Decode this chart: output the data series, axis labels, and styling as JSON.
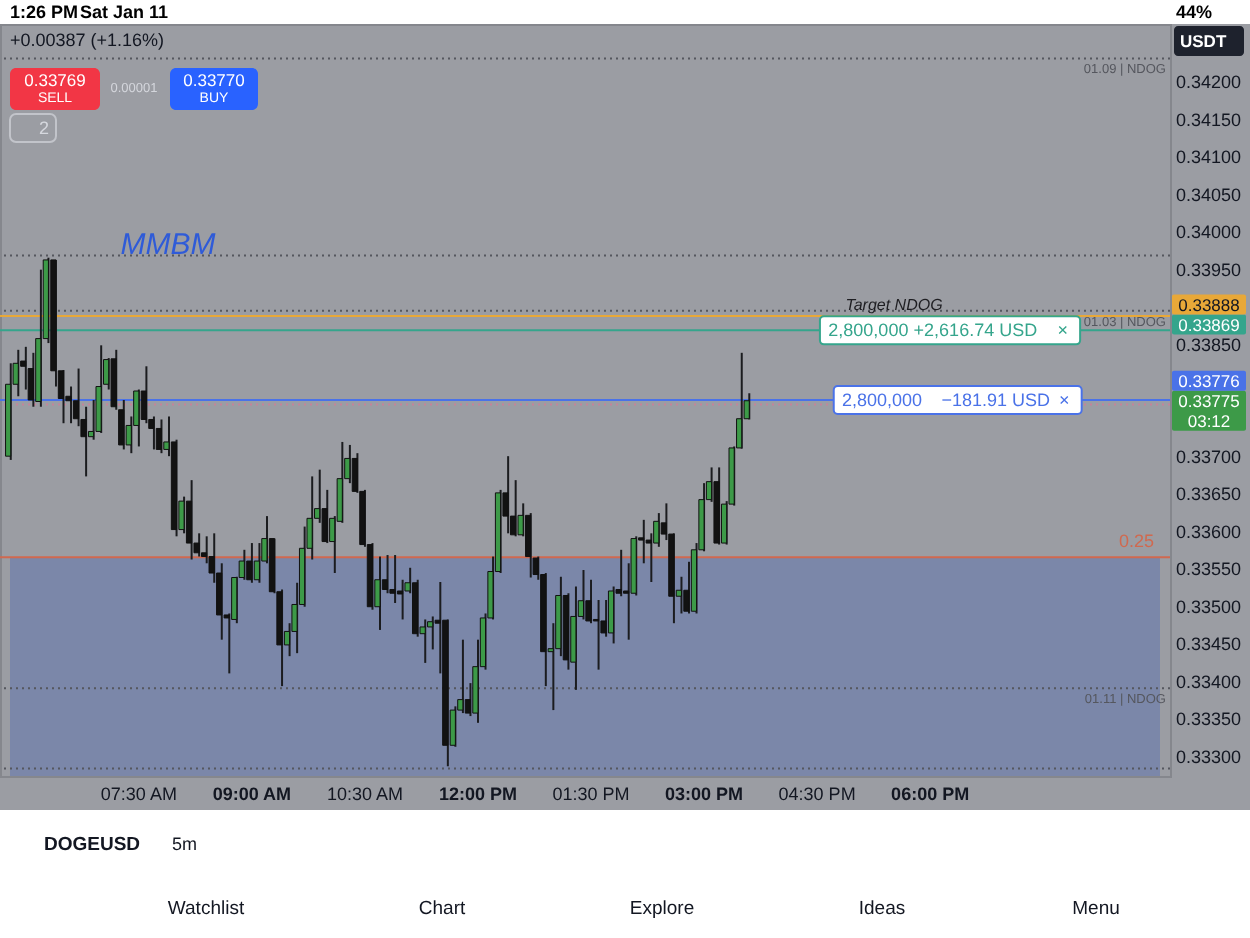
{
  "chart_data": {
    "type": "candlestick",
    "title": "DOGEUSD",
    "subtitle": "5m",
    "ylabel": "USDT",
    "x": [
      5.8,
      5.9,
      6,
      6.1,
      6.2,
      6.3,
      6.4,
      6.5,
      6.6,
      6.7,
      6.8,
      6.9,
      7,
      7.1,
      7.2,
      7.3,
      7.4,
      7.5,
      7.6,
      7.7,
      7.8,
      7.9,
      8,
      8.1,
      8.2,
      8.3,
      8.4,
      8.5,
      8.6,
      8.7,
      8.8,
      8.9,
      9,
      9.1,
      9.2,
      9.3,
      9.4,
      9.5,
      9.6,
      9.7,
      9.8,
      9.9,
      10,
      10.1,
      10.2,
      10.3,
      10.4,
      10.5,
      10.6,
      10.7,
      10.8,
      10.9,
      11,
      11.1,
      11.2,
      11.3,
      11.4,
      11.5,
      11.6,
      11.7,
      11.8,
      11.9,
      12,
      12.1,
      12.2,
      12.3,
      12.4,
      12.5,
      12.6,
      12.7,
      12.8,
      12.9,
      13,
      13.1,
      13.2,
      13.3,
      13.4,
      13.5,
      13.6,
      13.7,
      13.8,
      13.9,
      14,
      14.1,
      14.2,
      14.3,
      14.4,
      14.5,
      14.6,
      14.7,
      14.8,
      14.9,
      15,
      15.1,
      15.2,
      15.3,
      15.4,
      15.5,
      15.6
    ],
    "ohlc": [
      [
        0.33701,
        0.33825,
        0.33696,
        0.33797
      ],
      [
        0.33797,
        0.33843,
        0.33781,
        0.33825
      ],
      [
        0.33828,
        0.33847,
        0.3379,
        0.33821
      ],
      [
        0.33818,
        0.33839,
        0.33767,
        0.33776
      ],
      [
        0.33774,
        0.3395,
        0.33767,
        0.33858
      ],
      [
        0.33858,
        0.33966,
        0.33852,
        0.33963
      ],
      [
        0.33963,
        0.33963,
        0.33794,
        0.33815
      ],
      [
        0.33815,
        0.33816,
        0.33745,
        0.33778
      ],
      [
        0.33781,
        0.33794,
        0.33745,
        0.33775
      ],
      [
        0.33775,
        0.33818,
        0.33741,
        0.33751
      ],
      [
        0.3375,
        0.33767,
        0.33674,
        0.33727
      ],
      [
        0.33727,
        0.33776,
        0.33723,
        0.33734
      ],
      [
        0.33734,
        0.33849,
        0.33732,
        0.33794
      ],
      [
        0.33797,
        0.33832,
        0.3379,
        0.3383
      ],
      [
        0.33831,
        0.33843,
        0.33763,
        0.33767
      ],
      [
        0.33763,
        0.33776,
        0.3371,
        0.33716
      ],
      [
        0.33716,
        0.33754,
        0.33705,
        0.33742
      ],
      [
        0.33742,
        0.3379,
        0.33714,
        0.33788
      ],
      [
        0.33788,
        0.33821,
        0.33745,
        0.3375
      ],
      [
        0.3375,
        0.33754,
        0.3371,
        0.33738
      ],
      [
        0.33738,
        0.3375,
        0.33705,
        0.3371
      ],
      [
        0.3371,
        0.33754,
        0.33701,
        0.3372
      ],
      [
        0.3372,
        0.33723,
        0.33594,
        0.33603
      ],
      [
        0.33603,
        0.33647,
        0.33598,
        0.33641
      ],
      [
        0.33641,
        0.33669,
        0.33563,
        0.33585
      ],
      [
        0.33585,
        0.33598,
        0.33567,
        0.33572
      ],
      [
        0.33572,
        0.33594,
        0.33558,
        0.33567
      ],
      [
        0.33567,
        0.33598,
        0.33532,
        0.33545
      ],
      [
        0.33545,
        0.33558,
        0.33456,
        0.33489
      ],
      [
        0.33489,
        0.33491,
        0.33411,
        0.33485
      ],
      [
        0.33483,
        0.3354,
        0.33478,
        0.33539
      ],
      [
        0.33539,
        0.33576,
        0.33536,
        0.33561
      ],
      [
        0.33561,
        0.33585,
        0.33532,
        0.33536
      ],
      [
        0.33536,
        0.33585,
        0.33532,
        0.33561
      ],
      [
        0.33561,
        0.33621,
        0.33558,
        0.33591
      ],
      [
        0.33591,
        0.33591,
        0.33518,
        0.3352
      ],
      [
        0.3352,
        0.33523,
        0.33394,
        0.33449
      ],
      [
        0.33449,
        0.33478,
        0.33434,
        0.33467
      ],
      [
        0.33467,
        0.33532,
        0.33438,
        0.33503
      ],
      [
        0.33503,
        0.33607,
        0.335,
        0.33578
      ],
      [
        0.33578,
        0.33674,
        0.33563,
        0.33618
      ],
      [
        0.33618,
        0.33683,
        0.33612,
        0.33631
      ],
      [
        0.33631,
        0.33656,
        0.33585,
        0.33587
      ],
      [
        0.33587,
        0.33621,
        0.33545,
        0.33618
      ],
      [
        0.33614,
        0.3372,
        0.33612,
        0.33671
      ],
      [
        0.33671,
        0.33716,
        0.33665,
        0.33698
      ],
      [
        0.33698,
        0.33705,
        0.33652,
        0.33654
      ],
      [
        0.33654,
        0.33656,
        0.3358,
        0.33583
      ],
      [
        0.33583,
        0.33585,
        0.33496,
        0.335
      ],
      [
        0.335,
        0.33567,
        0.33469,
        0.33536
      ],
      [
        0.33536,
        0.33569,
        0.33518,
        0.33523
      ],
      [
        0.33523,
        0.33569,
        0.33505,
        0.33518
      ],
      [
        0.33521,
        0.33536,
        0.33483,
        0.33517
      ],
      [
        0.33521,
        0.33552,
        0.33518,
        0.33532
      ],
      [
        0.33532,
        0.33536,
        0.3346,
        0.33464
      ],
      [
        0.33464,
        0.33483,
        0.33425,
        0.33473
      ],
      [
        0.33473,
        0.33487,
        0.33443,
        0.3348
      ],
      [
        0.33482,
        0.33533,
        0.33411,
        0.33478
      ],
      [
        0.33482,
        0.33483,
        0.33287,
        0.33315
      ],
      [
        0.33315,
        0.33367,
        0.33313,
        0.33362
      ],
      [
        0.33362,
        0.33456,
        0.33358,
        0.33376
      ],
      [
        0.33376,
        0.33398,
        0.33354,
        0.33358
      ],
      [
        0.33358,
        0.33456,
        0.33345,
        0.3342
      ],
      [
        0.3342,
        0.33491,
        0.33416,
        0.33485
      ],
      [
        0.33485,
        0.33567,
        0.33483,
        0.33547
      ],
      [
        0.33547,
        0.33656,
        0.33545,
        0.33652
      ],
      [
        0.33652,
        0.33701,
        0.33598,
        0.33621
      ],
      [
        0.33621,
        0.33669,
        0.33594,
        0.33596
      ],
      [
        0.33596,
        0.33638,
        0.33594,
        0.33622
      ],
      [
        0.33622,
        0.33625,
        0.33539,
        0.33567
      ],
      [
        0.33565,
        0.33567,
        0.33536,
        0.33543
      ],
      [
        0.33543,
        0.33545,
        0.33394,
        0.3344
      ],
      [
        0.3344,
        0.33478,
        0.33362,
        0.33444
      ],
      [
        0.33444,
        0.3354,
        0.33434,
        0.33515
      ],
      [
        0.33515,
        0.33518,
        0.33416,
        0.33429
      ],
      [
        0.33426,
        0.33527,
        0.33389,
        0.33487
      ],
      [
        0.33487,
        0.33549,
        0.33483,
        0.33508
      ],
      [
        0.33508,
        0.33536,
        0.33478,
        0.33481
      ],
      [
        0.33483,
        0.33509,
        0.33416,
        0.33481
      ],
      [
        0.33481,
        0.33509,
        0.3346,
        0.33465
      ],
      [
        0.33465,
        0.33527,
        0.33451,
        0.33521
      ],
      [
        0.33523,
        0.33576,
        0.33514,
        0.33518
      ],
      [
        0.33521,
        0.33558,
        0.33456,
        0.33518
      ],
      [
        0.33518,
        0.33594,
        0.33515,
        0.33591
      ],
      [
        0.33592,
        0.33616,
        0.33558,
        0.33589
      ],
      [
        0.33589,
        0.33598,
        0.33533,
        0.33585
      ],
      [
        0.33585,
        0.33625,
        0.3358,
        0.33614
      ],
      [
        0.33612,
        0.33638,
        0.33589,
        0.33597
      ],
      [
        0.33597,
        0.33598,
        0.33478,
        0.33514
      ],
      [
        0.33514,
        0.3354,
        0.33491,
        0.33522
      ],
      [
        0.33522,
        0.3356,
        0.33491,
        0.33494
      ],
      [
        0.33494,
        0.33585,
        0.33491,
        0.33576
      ],
      [
        0.33576,
        0.33665,
        0.33574,
        0.33643
      ],
      [
        0.33643,
        0.33686,
        0.3364,
        0.33667
      ],
      [
        0.33667,
        0.33686,
        0.33583,
        0.33585
      ],
      [
        0.33585,
        0.33641,
        0.33583,
        0.33637
      ],
      [
        0.33637,
        0.33714,
        0.33635,
        0.33712
      ],
      [
        0.33712,
        0.33839,
        0.33711,
        0.33751
      ],
      [
        0.33751,
        0.33785,
        0.3375,
        0.33775
      ]
    ],
    "colors": [
      "#3d9a48",
      "#3d9a48",
      "#121212",
      "#121212",
      "#3d9a48",
      "#3d9a48",
      "#121212",
      "#121212",
      "#121212",
      "#121212",
      "#121212",
      "#3d9a48",
      "#3d9a48",
      "#3d9a48",
      "#121212",
      "#121212",
      "#3d9a48",
      "#3d9a48",
      "#121212",
      "#121212",
      "#121212",
      "#3d9a48",
      "#121212",
      "#3d9a48",
      "#121212",
      "#121212",
      "#121212",
      "#121212",
      "#121212",
      "#121212",
      "#3d9a48",
      "#3d9a48",
      "#121212",
      "#3d9a48",
      "#3d9a48",
      "#121212",
      "#121212",
      "#3d9a48",
      "#3d9a48",
      "#3d9a48",
      "#3d9a48",
      "#3d9a48",
      "#121212",
      "#3d9a48",
      "#3d9a48",
      "#3d9a48",
      "#121212",
      "#121212",
      "#121212",
      "#3d9a48",
      "#121212",
      "#121212",
      "#121212",
      "#3d9a48",
      "#121212",
      "#3d9a48",
      "#3d9a48",
      "#121212",
      "#121212",
      "#3d9a48",
      "#3d9a48",
      "#121212",
      "#3d9a48",
      "#3d9a48",
      "#3d9a48",
      "#3d9a48",
      "#121212",
      "#121212",
      "#3d9a48",
      "#121212",
      "#121212",
      "#121212",
      "#3d9a48",
      "#3d9a48",
      "#121212",
      "#3d9a48",
      "#3d9a48",
      "#121212",
      "#121212",
      "#121212",
      "#3d9a48",
      "#121212",
      "#121212",
      "#3d9a48",
      "#121212",
      "#121212",
      "#3d9a48",
      "#121212",
      "#121212",
      "#3d9a48",
      "#121212",
      "#3d9a48",
      "#3d9a48",
      "#3d9a48",
      "#121212",
      "#3d9a48",
      "#3d9a48",
      "#3d9a48",
      "#3d9a48"
    ],
    "xlim": [
      5.79,
      21.05
    ],
    "ylim": [
      0.33274,
      0.34278
    ],
    "xticks": [
      {
        "value": 7.5,
        "label": "07:30 AM"
      },
      {
        "value": 9,
        "label": "09:00 AM"
      },
      {
        "value": 10.5,
        "label": "10:30 AM"
      },
      {
        "value": 12,
        "label": "12:00 PM"
      },
      {
        "value": 13.5,
        "label": "01:30 PM"
      },
      {
        "value": 15,
        "label": "03:00 PM"
      },
      {
        "value": 16.5,
        "label": "04:30 PM"
      },
      {
        "value": 18,
        "label": "06:00 PM"
      }
    ],
    "yticks": [
      {
        "value": 0.333,
        "label": "0.33300"
      },
      {
        "value": 0.3335,
        "label": "0.33350"
      },
      {
        "value": 0.334,
        "label": "0.33400"
      },
      {
        "value": 0.3345,
        "label": "0.33450"
      },
      {
        "value": 0.335,
        "label": "0.33500"
      },
      {
        "value": 0.3355,
        "label": "0.33550"
      },
      {
        "value": 0.336,
        "label": "0.33600"
      },
      {
        "value": 0.3365,
        "label": "0.33650"
      },
      {
        "value": 0.337,
        "label": "0.33700"
      },
      {
        "value": 0.3385,
        "label": "0.33850"
      },
      {
        "value": 0.3395,
        "label": "0.33950"
      },
      {
        "value": 0.34,
        "label": "0.34000"
      },
      {
        "value": 0.3405,
        "label": "0.34050"
      },
      {
        "value": 0.341,
        "label": "0.34100"
      },
      {
        "value": 0.3415,
        "label": "0.34150"
      },
      {
        "value": 0.342,
        "label": "0.34200"
      }
    ],
    "bands": [
      {
        "axis": "y",
        "from": 0.33274,
        "to": 0.33566,
        "label": "0.25",
        "color": "#7b87a9"
      }
    ],
    "ref_lines": [
      {
        "axis": "y",
        "value": 0.34232,
        "label": "01.09 | NDOG",
        "color": "#55575e",
        "line_style": "dotted"
      },
      {
        "axis": "y",
        "value": 0.33969,
        "color": "#55575e",
        "line_style": "dotted"
      },
      {
        "axis": "y",
        "value": 0.33895,
        "label": "01.03 | NDOG",
        "color": "#55575e",
        "line_style": "dotted"
      },
      {
        "axis": "y",
        "value": 0.33888,
        "label": "0.33888",
        "color": "#e8a838",
        "line_style": "solid"
      },
      {
        "axis": "y",
        "value": 0.33869,
        "label": "0.33869",
        "color": "#35a58c",
        "line_style": "solid"
      },
      {
        "axis": "y",
        "value": 0.33776,
        "label": "0.33776",
        "color": "#4a72e8",
        "line_style": "solid"
      },
      {
        "axis": "y",
        "value": 0.3377,
        "color": "#c4849a",
        "line_style": "dotted"
      },
      {
        "axis": "y",
        "value": 0.33566,
        "color": "#d0694f",
        "line_style": "solid"
      },
      {
        "axis": "y",
        "value": 0.33391,
        "label": "01.11 | NDOG",
        "color": "#55575e",
        "line_style": "dotted"
      },
      {
        "axis": "y",
        "value": 0.33284,
        "color": "#55575e",
        "line_style": "dotted"
      }
    ],
    "annotations": [
      "1:26 PM",
      "Sat Jan 11",
      "44%",
      "+0.00387 (+1.16%)",
      "0.33769",
      "SELL",
      "0.00001",
      "0.33770",
      "BUY",
      "2",
      "MMBM",
      "Watchlist",
      "Chart",
      "Explore",
      "Ideas",
      "Menu",
      {
        "text": "Target NDOG",
        "x": 17.52,
        "y": 0.33902
      },
      {
        "text": "2,800,000",
        "x": 17.18,
        "y": 0.33869
      },
      {
        "text": "+2,616.74 USD",
        "x": 18.6,
        "y": 0.33869
      },
      {
        "text": "×",
        "x": 19.76,
        "y": 0.33869
      },
      {
        "text": "2,800,000",
        "x": 17.36,
        "y": 0.33776
      },
      {
        "text": "−181.91 USD",
        "x": 18.87,
        "y": 0.33776
      },
      {
        "text": "×",
        "x": 19.78,
        "y": 0.33776
      },
      {
        "text": "0.33775\n03:12",
        "x": 21.05,
        "y": 0.33775
      }
    ]
  }
}
